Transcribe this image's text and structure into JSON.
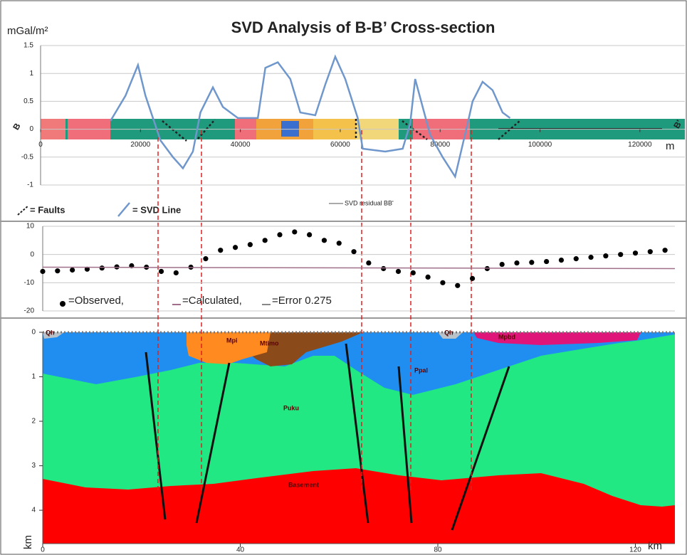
{
  "chart_data": [
    {
      "type": "line",
      "title": "SVD Analysis of B-B’ Cross-section",
      "y_label": "mGal/m²",
      "x_label": "m",
      "start_label": "B",
      "end_label": "B'",
      "xlim": [
        0,
        129000
      ],
      "xticks": [
        0,
        20000,
        40000,
        60000,
        80000,
        100000,
        120000
      ],
      "ylim": [
        -1,
        1.5
      ],
      "yticks": [
        -1,
        -0.5,
        0,
        0.5,
        1,
        1.5
      ],
      "grid": true,
      "annotations": [
        "= Faults",
        "SVD residual BB'"
      ],
      "series": [
        {
          "name": "= SVD Line",
          "color": "#6f97cc",
          "x": [
            14000,
            17000,
            19500,
            21000,
            22500,
            24000,
            26500,
            28500,
            30500,
            32000,
            34500,
            36500,
            39500,
            43500,
            45000,
            47500,
            50000,
            52000,
            55000,
            57000,
            59000,
            61000,
            63500,
            64500,
            69000,
            72500,
            74000,
            75000,
            76500,
            78000,
            80500,
            83000,
            85500,
            86500,
            88500,
            90500,
            92500,
            94000
          ],
          "values": [
            0.15,
            0.6,
            1.15,
            0.6,
            0.2,
            -0.2,
            -0.5,
            -0.7,
            -0.4,
            0.3,
            0.75,
            0.4,
            0.2,
            0.2,
            1.1,
            1.2,
            0.9,
            0.3,
            0.25,
            0.8,
            1.3,
            0.9,
            0.2,
            -0.35,
            -0.4,
            -0.35,
            0.1,
            0.9,
            0.4,
            -0.1,
            -0.5,
            -0.85,
            0.1,
            0.5,
            0.85,
            0.7,
            0.3,
            0.2
          ]
        }
      ]
    },
    {
      "type": "scatter",
      "xlim": [
        0,
        128
      ],
      "ylim": [
        -20,
        10
      ],
      "yticks": [
        -20,
        -10,
        0,
        10
      ],
      "grid": true,
      "annotations": [
        "=Error 0.275"
      ],
      "series": [
        {
          "name": "=Observed,",
          "color": "#000000",
          "mode": "dots",
          "x": [
            0,
            3,
            6,
            9,
            12,
            15,
            18,
            21,
            24,
            27,
            30,
            33,
            36,
            39,
            42,
            45,
            48,
            51,
            54,
            57,
            60,
            63,
            66,
            69,
            72,
            75,
            78,
            81,
            84,
            87,
            90,
            93,
            96,
            99,
            102,
            105,
            108,
            111,
            114,
            117,
            120,
            123,
            126
          ],
          "values": [
            -6,
            -5.8,
            -5.5,
            -5.2,
            -4.8,
            -4.4,
            -4,
            -4.5,
            -6,
            -6.5,
            -4.5,
            -1.5,
            1.5,
            2.5,
            3.5,
            5,
            7,
            8,
            7,
            5,
            4,
            1,
            -3,
            -5,
            -6,
            -6.5,
            -8,
            -10,
            -11,
            -8.5,
            -5,
            -3.5,
            -3,
            -2.8,
            -2.5,
            -2,
            -1.5,
            -1,
            -0.5,
            0,
            0.5,
            1,
            1.5
          ]
        },
        {
          "name": "=Calculated,",
          "color": "#a0708a",
          "mode": "line",
          "x": [
            0,
            128
          ],
          "values": [
            -4.5,
            -5
          ]
        }
      ]
    },
    {
      "type": "section",
      "y_label": "km",
      "x_label": "km",
      "xlim": [
        0,
        128
      ],
      "xticks": [
        0,
        40,
        80,
        120
      ],
      "ylim": [
        0,
        4.75
      ],
      "y_inverted": true,
      "yticks": [
        0,
        1,
        2,
        3,
        4
      ],
      "labels": [
        "Qh",
        "Mpi",
        "Mtimo",
        "Qh",
        "Mpbd",
        "Ppal",
        "Puku",
        "Basement"
      ]
    }
  ]
}
